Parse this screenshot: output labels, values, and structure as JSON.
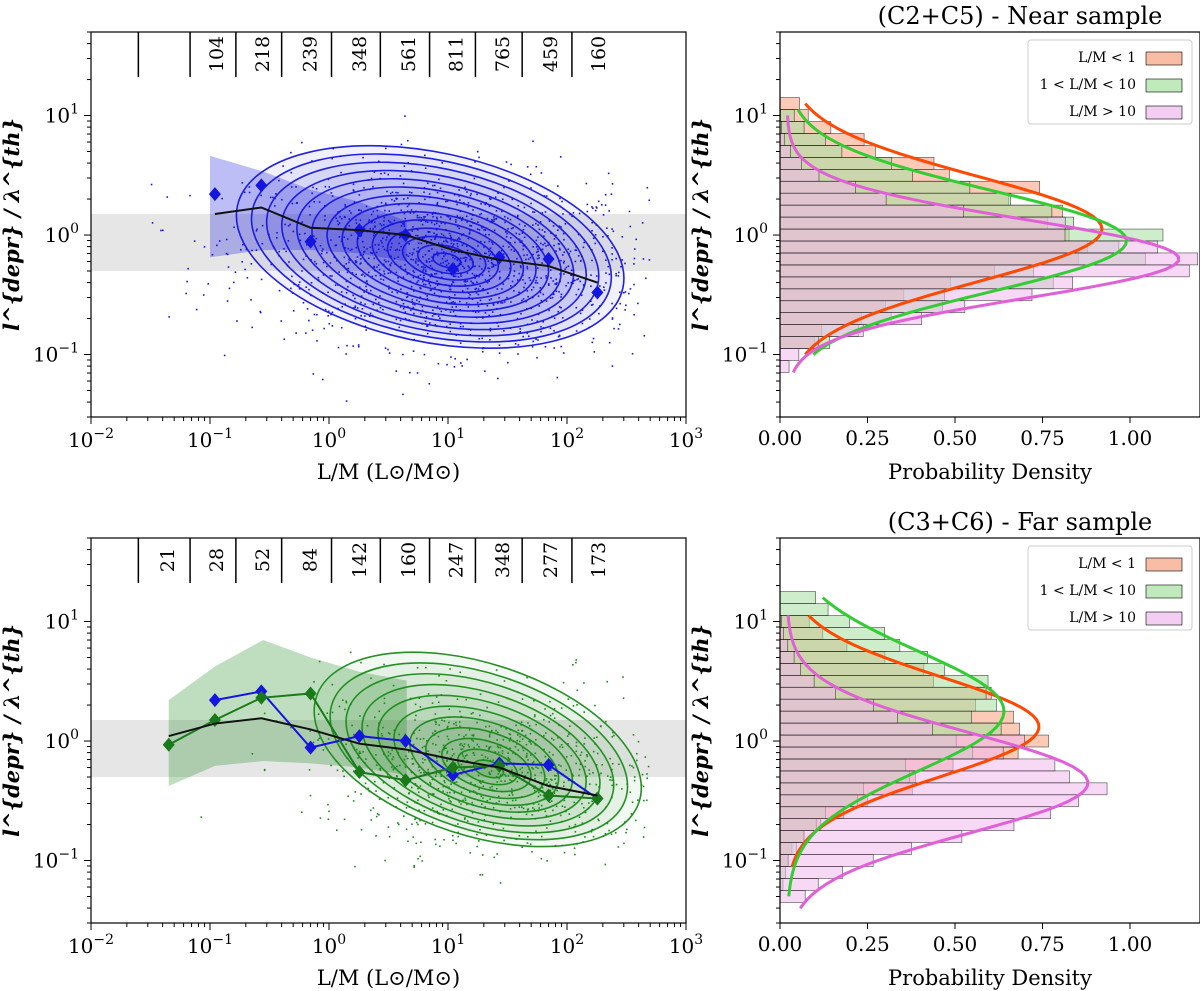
{
  "panels": [
    {
      "id": "near-scatter",
      "type": "scatter-contour",
      "title": "",
      "xlabel": "L/M (L⊙/M⊙)",
      "ylabel": "l^{depr} / λ^{th}",
      "xscale": "log",
      "yscale": "log",
      "xlim": [
        0.01,
        1000
      ],
      "ylim": [
        0.03,
        50
      ],
      "x_ticks": [
        0.01,
        0.1,
        1,
        10,
        100,
        1000
      ],
      "y_ticks": [
        0.1,
        1,
        10
      ],
      "gray_band": [
        0.5,
        1.5
      ],
      "bin_counts": [
        "",
        "104",
        "218",
        "239",
        "348",
        "561",
        "811",
        "765",
        "459",
        "160"
      ],
      "bin_edges": [
        0.025,
        0.068,
        0.165,
        0.4,
        1.05,
        2.7,
        7,
        17,
        42,
        110
      ],
      "shade_envelope": {
        "x": [
          0.1,
          0.28,
          0.7,
          1.8,
          4.5
        ],
        "lo": [
          0.65,
          0.75,
          0.75,
          0.7,
          0.6
        ],
        "hi": [
          4.6,
          3.4,
          2.4,
          1.9,
          1.3
        ]
      },
      "scatter_color": "#1515e0",
      "series": [
        {
          "name": "blue diamonds",
          "color": "#1515e0",
          "marker": "diamond",
          "connected": false,
          "x": [
            0.11,
            0.27,
            0.7,
            1.8,
            4.4,
            11,
            27,
            70,
            180
          ],
          "y": [
            2.2,
            2.6,
            0.88,
            1.1,
            1.0,
            0.52,
            0.65,
            0.63,
            0.33
          ]
        },
        {
          "name": "median",
          "color": "#111111",
          "marker": "none",
          "connected": true,
          "x": [
            0.11,
            0.27,
            0.7,
            1.8,
            4.4,
            11,
            27,
            70,
            180
          ],
          "y": [
            1.5,
            1.7,
            1.15,
            1.1,
            1.0,
            0.75,
            0.62,
            0.55,
            0.4
          ]
        }
      ]
    },
    {
      "id": "near-hist",
      "type": "histogram",
      "title": "(C2+C5) - Near sample",
      "xlabel": "Probability Density",
      "ylabel": "l^{depr} / λ^{th}",
      "xlim": [
        0,
        1.2
      ],
      "ylim": [
        0.03,
        50
      ],
      "yscale": "log",
      "x_ticks": [
        "0.00",
        "0.25",
        "0.50",
        "0.75",
        "1.00"
      ],
      "x_tick_values": [
        0,
        0.25,
        0.5,
        0.75,
        1.0
      ],
      "y_ticks": [
        0.1,
        1,
        10
      ],
      "legend": [
        "L/M < 1",
        "1 < L/M < 10",
        "L/M > 10"
      ],
      "legend_position": "top-right",
      "series": [
        {
          "name": "L/M < 1",
          "fill": "#f7a07d",
          "line": "#ff4800",
          "log_center": 0.05,
          "log_sigma": 0.44,
          "peak": 0.9,
          "log_range": [
            -1.0,
            1.1
          ]
        },
        {
          "name": "1 < L/M < 10",
          "fill": "#a5e0a0",
          "line": "#33cc33",
          "log_center": -0.05,
          "log_sigma": 0.42,
          "peak": 0.97,
          "log_range": [
            -1.0,
            1.05
          ]
        },
        {
          "name": "L/M > 10",
          "fill": "#f0b8ec",
          "line": "#e060d8",
          "log_center": -0.2,
          "log_sigma": 0.33,
          "peak": 1.12,
          "log_range": [
            -1.15,
            1.0
          ]
        }
      ]
    },
    {
      "id": "far-scatter",
      "type": "scatter-contour",
      "title": "",
      "xlabel": "L/M (L⊙/M⊙)",
      "ylabel": "l^{depr} / λ^{th}",
      "xscale": "log",
      "yscale": "log",
      "xlim": [
        0.01,
        1000
      ],
      "ylim": [
        0.03,
        50
      ],
      "x_ticks": [
        0.01,
        0.1,
        1,
        10,
        100,
        1000
      ],
      "y_ticks": [
        0.1,
        1,
        10
      ],
      "gray_band": [
        0.5,
        1.5
      ],
      "bin_counts": [
        "21",
        "28",
        "52",
        "84",
        "142",
        "160",
        "247",
        "348",
        "277",
        "173"
      ],
      "bin_edges": [
        0.025,
        0.068,
        0.165,
        0.4,
        1.05,
        2.7,
        7,
        17,
        42,
        110
      ],
      "shade_envelope": {
        "x": [
          0.045,
          0.11,
          0.28,
          0.7,
          1.8,
          4.5
        ],
        "lo": [
          0.42,
          0.62,
          0.68,
          0.65,
          0.6,
          0.52
        ],
        "hi": [
          2.2,
          4.2,
          7.0,
          5.0,
          3.8,
          3.2
        ]
      },
      "scatter_color": "#1a8a1a",
      "series": [
        {
          "name": "blue diamonds",
          "color": "#1515e0",
          "marker": "diamond",
          "connected": true,
          "x": [
            0.11,
            0.27,
            0.7,
            1.8,
            4.4,
            11,
            27,
            70,
            180
          ],
          "y": [
            2.2,
            2.6,
            0.88,
            1.1,
            1.0,
            0.52,
            0.65,
            0.63,
            0.33
          ]
        },
        {
          "name": "green diamonds",
          "color": "#1a7a1a",
          "marker": "diamond",
          "connected": true,
          "x": [
            0.045,
            0.11,
            0.27,
            0.7,
            1.8,
            4.4,
            11,
            27,
            70,
            180
          ],
          "y": [
            0.93,
            1.5,
            2.3,
            2.5,
            0.55,
            0.47,
            0.6,
            0.62,
            0.35,
            0.33
          ]
        },
        {
          "name": "median",
          "color": "#111111",
          "marker": "none",
          "connected": true,
          "x": [
            0.045,
            0.11,
            0.27,
            0.7,
            1.8,
            4.4,
            11,
            27,
            70,
            180
          ],
          "y": [
            1.1,
            1.4,
            1.55,
            1.25,
            0.95,
            0.85,
            0.7,
            0.6,
            0.42,
            0.35
          ]
        }
      ]
    },
    {
      "id": "far-hist",
      "type": "histogram",
      "title": "(C3+C6) - Far sample",
      "xlabel": "Probability Density",
      "ylabel": "l^{depr} / λ^{th}",
      "xlim": [
        0,
        1.2
      ],
      "ylim": [
        0.03,
        50
      ],
      "yscale": "log",
      "x_ticks": [
        "0.00",
        "0.25",
        "0.50",
        "0.75",
        "1.00"
      ],
      "x_tick_values": [
        0,
        0.25,
        0.5,
        0.75,
        1.0
      ],
      "y_ticks": [
        0.1,
        1,
        10
      ],
      "legend": [
        "L/M < 1",
        "1 < L/M < 10",
        "L/M > 10"
      ],
      "legend_position": "top-right",
      "series": [
        {
          "name": "L/M < 1",
          "fill": "#f7a07d",
          "line": "#ff4800",
          "log_center": 0.12,
          "log_sigma": 0.42,
          "peak": 0.72,
          "log_range": [
            -1.05,
            1.05
          ]
        },
        {
          "name": "1 < L/M < 10",
          "fill": "#a5e0a0",
          "line": "#33cc33",
          "log_center": 0.25,
          "log_sigma": 0.5,
          "peak": 0.62,
          "log_range": [
            -1.3,
            1.2
          ]
        },
        {
          "name": "L/M > 10",
          "fill": "#f0b8ec",
          "line": "#e060d8",
          "log_center": -0.35,
          "log_sigma": 0.42,
          "peak": 0.86,
          "log_range": [
            -1.4,
            1.05
          ]
        }
      ]
    }
  ]
}
